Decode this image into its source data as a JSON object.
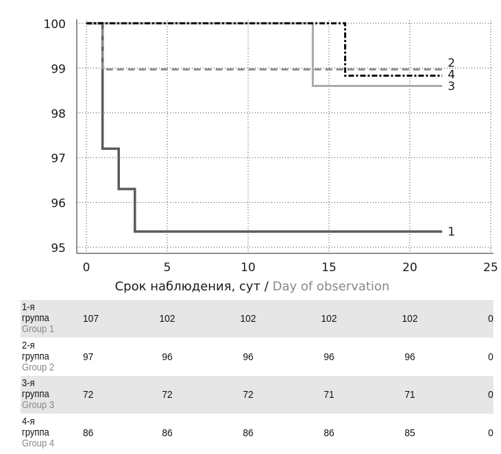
{
  "chart_data": {
    "type": "line",
    "subtype": "kaplan-meier step",
    "xlabel_ru": "Срок наблюдения, сут /",
    "xlabel_en": "Day of observation",
    "ylabel": "",
    "xlim": [
      0,
      25
    ],
    "ylim": [
      95,
      100
    ],
    "xticks": [
      0,
      5,
      10,
      15,
      20,
      25
    ],
    "yticks": [
      95,
      96,
      97,
      98,
      99,
      100
    ],
    "grid": true,
    "series": [
      {
        "name": "1",
        "style": "solid",
        "color": "#5a5a5a",
        "x": [
          0,
          1,
          2,
          3,
          22
        ],
        "y": [
          100,
          97.2,
          96.3,
          95.35,
          95.35
        ]
      },
      {
        "name": "2",
        "style": "dashed",
        "color": "#8c8c8c",
        "x": [
          0,
          1,
          22
        ],
        "y": [
          100,
          98.97,
          98.97
        ]
      },
      {
        "name": "3",
        "style": "solid",
        "color": "#aaaaaa",
        "x": [
          0,
          14,
          22
        ],
        "y": [
          100,
          98.6,
          98.6
        ]
      },
      {
        "name": "4",
        "style": "dashdot",
        "color": "#000000",
        "x": [
          0,
          16,
          22
        ],
        "y": [
          100,
          98.83,
          98.83
        ]
      }
    ]
  },
  "risk_table": {
    "rows": [
      {
        "ru1": "1-я",
        "ru2": "группа",
        "en": "Group 1",
        "values": [
          "107",
          "102",
          "102",
          "102",
          "102",
          "0"
        ]
      },
      {
        "ru1": "2-я",
        "ru2": "группа",
        "en": "Group 2",
        "values": [
          "97",
          "96",
          "96",
          "96",
          "96",
          "0"
        ]
      },
      {
        "ru1": "3-я",
        "ru2": "группа",
        "en": "Group 3",
        "values": [
          "72",
          "72",
          "72",
          "71",
          "71",
          "0"
        ]
      },
      {
        "ru1": "4-я",
        "ru2": "группа",
        "en": "Group 4",
        "values": [
          "86",
          "86",
          "86",
          "86",
          "85",
          "0"
        ]
      }
    ]
  }
}
